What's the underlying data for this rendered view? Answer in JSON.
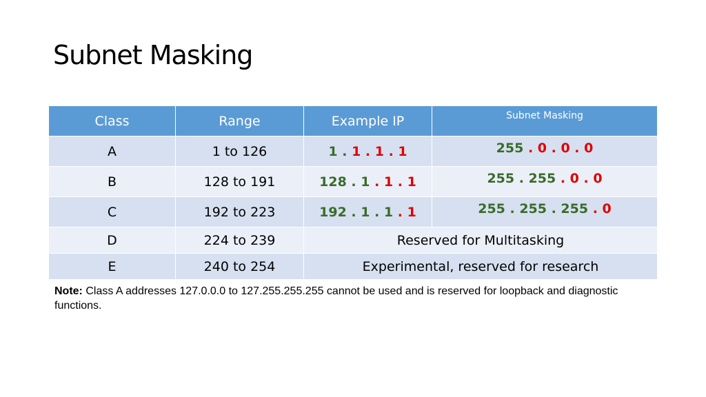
{
  "title": "Subnet Masking",
  "table": {
    "headers": [
      "Class",
      "Range",
      "Example IP",
      "Subnet Masking"
    ],
    "rows": [
      {
        "class": "A",
        "range": "1 to 126",
        "ip": [
          {
            "t": "1",
            "c": "green"
          },
          {
            "t": " . ",
            "c": "green"
          },
          {
            "t": "1 . 1 . 1",
            "c": "red"
          }
        ],
        "mask": [
          {
            "t": "255 ",
            "c": "green"
          },
          {
            "t": ". 0 . 0 . 0",
            "c": "red"
          }
        ]
      },
      {
        "class": "B",
        "range": "128 to 191",
        "ip": [
          {
            "t": "128 . 1",
            "c": "green"
          },
          {
            "t": " . 1 . 1",
            "c": "red"
          }
        ],
        "mask": [
          {
            "t": "255 . 255 ",
            "c": "green"
          },
          {
            "t": ". 0 . 0",
            "c": "red"
          }
        ]
      },
      {
        "class": "C",
        "range": "192 to 223",
        "ip": [
          {
            "t": "192 . 1 . 1",
            "c": "green"
          },
          {
            "t": " . 1",
            "c": "red"
          }
        ],
        "mask": [
          {
            "t": "255 . 255 . 255 ",
            "c": "green"
          },
          {
            "t": ". 0",
            "c": "red"
          }
        ]
      },
      {
        "class": "D",
        "range": "224 to 239",
        "reserved": "Reserved for Multitasking"
      },
      {
        "class": "E",
        "range": "240 to 254",
        "reserved": "Experimental, reserved for research"
      }
    ]
  },
  "note": {
    "label": "Note:",
    "text": " Class A addresses 127.0.0.0 to 127.255.255.255 cannot be used and is reserved for loopback and diagnostic functions."
  },
  "colors": {
    "header": "#5b9bd5",
    "row_dark": "#d6e0f0",
    "row_light": "#ebeff8",
    "green": "#3a6b2a",
    "red": "#e00000"
  }
}
